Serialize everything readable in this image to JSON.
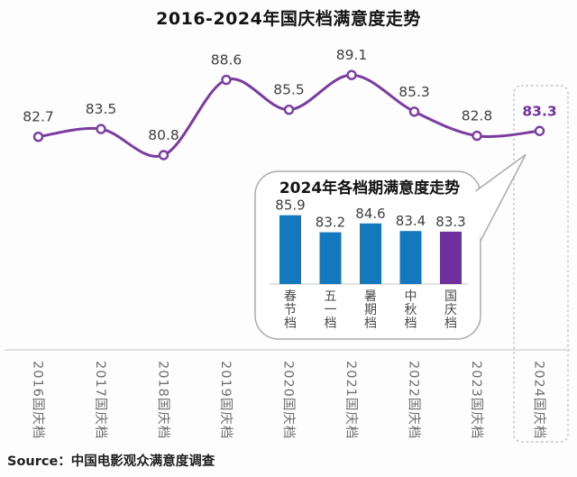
{
  "title": "2016-2024年国庆档满意度走势",
  "source": "Source：中国电影观众满意度调查",
  "colors": {
    "line": "#7b3ca2",
    "marker_fill": "#ffffff",
    "bar_blue": "#1478be",
    "bar_purple": "#7030a0",
    "value_label": "#3f3f3f",
    "tick_label": "#6e6e6e",
    "axis_line": "#d8d8d8",
    "bubble_border": "#ababab",
    "highlight_border": "#c0c0c0",
    "highlight_label": "#7030a0",
    "inset_title": "#141414",
    "category_label": "#4a4a4a"
  },
  "chart_data": [
    {
      "type": "line",
      "title": "2016-2024年国庆档满意度走势",
      "categories": [
        "2016国庆档",
        "2017国庆档",
        "2018国庆档",
        "2019国庆档",
        "2020国庆档",
        "2021国庆档",
        "2022国庆档",
        "2023国庆档",
        "2024国庆档"
      ],
      "values": [
        82.7,
        83.5,
        80.8,
        88.6,
        85.5,
        89.1,
        85.3,
        82.8,
        83.3
      ],
      "highlight_index": 8,
      "highlight_note": "2024 point framed by dashed box",
      "xlabel": "",
      "ylabel": "",
      "ylim": [
        78,
        91
      ],
      "grid": false,
      "legend": "none"
    },
    {
      "type": "bar",
      "title": "2024年各档期满意度走势",
      "categories": [
        "春节档",
        "五一档",
        "暑期档",
        "中秋档",
        "国庆档"
      ],
      "values": [
        85.9,
        83.2,
        84.6,
        83.4,
        83.3
      ],
      "highlight_index": 4,
      "xlabel": "",
      "ylabel": "",
      "ylim": [
        75,
        88
      ],
      "grid": false,
      "legend": "none",
      "container": "rounded speech bubble pointing to 2024 data point"
    }
  ]
}
